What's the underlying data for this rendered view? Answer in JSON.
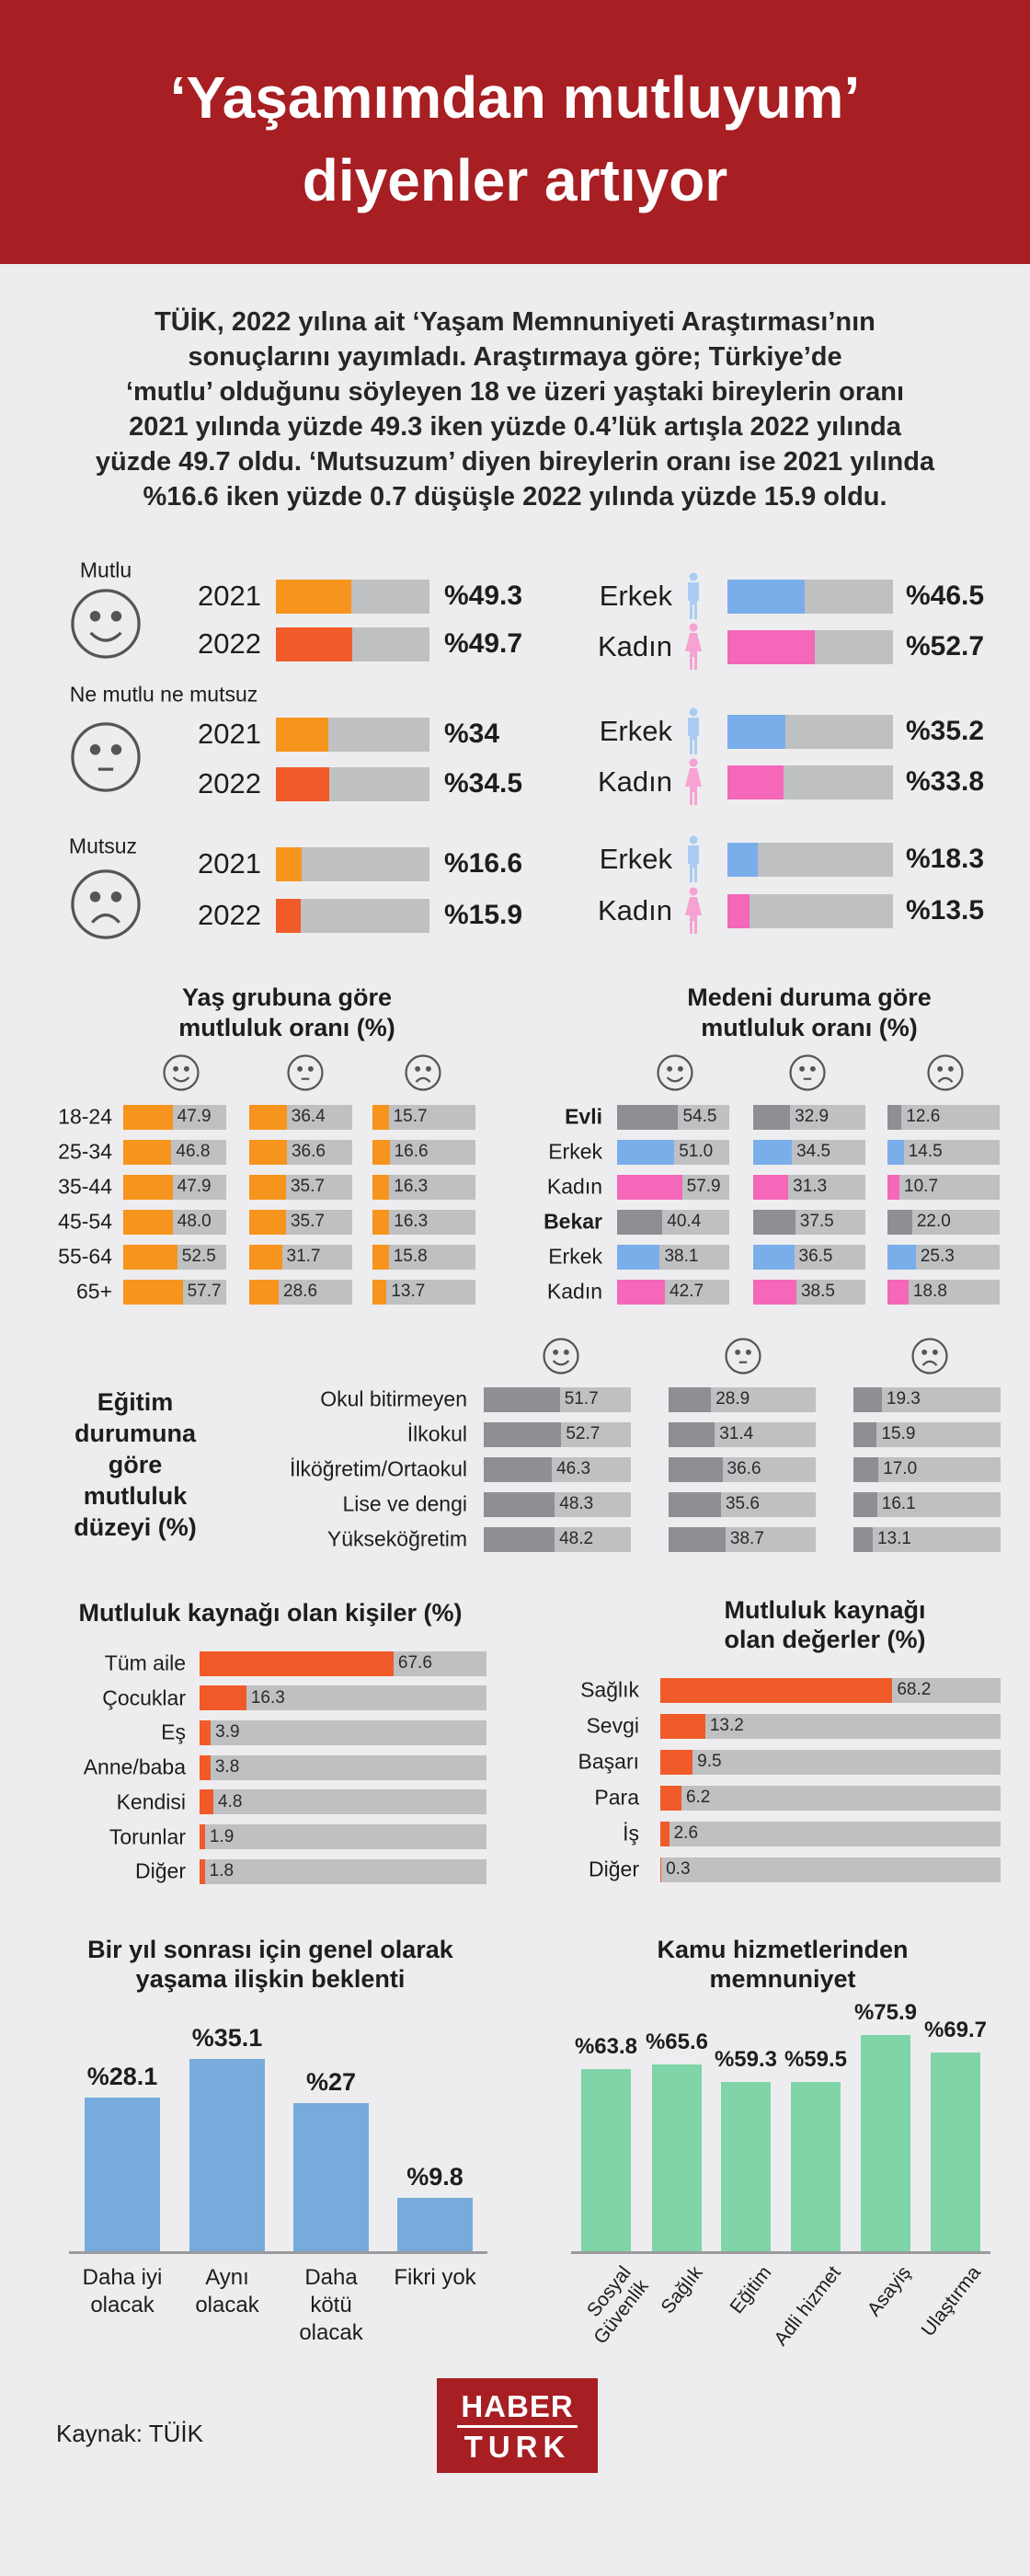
{
  "colors": {
    "header": "#a71e23",
    "orange": "#f7941d",
    "red_orange": "#f15a29",
    "blue": "#7aaeea",
    "pink": "#f467b9",
    "gray_fill": "#8e8f92",
    "track": "#bfc0c2",
    "bar_blue": "#77abdb",
    "bar_green": "#7fd4a8",
    "icon_blue": "#a9cdf2",
    "icon_pink": "#f6a2d2"
  },
  "header": {
    "title_lines": [
      "‘Yaşamımdan mutluyum’",
      "diyenler artıyor"
    ]
  },
  "intro": {
    "lines": [
      "TÜİK, 2022 yılına ait ‘Yaşam Memnuniyeti Araştırması’nın",
      "sonuçlarını yayımladı. Araştırmaya göre; Türkiye’de",
      "‘mutlu’ olduğunu söyleyen 18 ve üzeri yaştaki bireylerin oranı",
      "2021 yılında yüzde 49.3 iken yüzde 0.4’lük artışla 2022 yılında",
      "yüzde 49.7 oldu. ‘Mutsuzum’ diyen bireylerin oranı ise 2021 yılında",
      "%16.6 iken yüzde 0.7 düşüşle 2022 yılında yüzde 15.9 oldu."
    ]
  },
  "happiness": [
    {
      "label": "Mutlu",
      "face": "happy-face-icon",
      "years": [
        {
          "year": "2021",
          "value": "%49.3"
        },
        {
          "year": "2022",
          "value": "%49.7"
        }
      ],
      "gender": [
        {
          "label": "Erkek",
          "value": "%46.5"
        },
        {
          "label": "Kadın",
          "value": "%52.7"
        }
      ]
    },
    {
      "label": "Ne mutlu ne mutsuz",
      "face": "neutral-face-icon",
      "years": [
        {
          "year": "2021",
          "value": "%34"
        },
        {
          "year": "2022",
          "value": "%34.5"
        }
      ],
      "gender": [
        {
          "label": "Erkek",
          "value": "%35.2"
        },
        {
          "label": "Kadın",
          "value": "%33.8"
        }
      ]
    },
    {
      "label": "Mutsuz",
      "face": "sad-face-icon",
      "years": [
        {
          "year": "2021",
          "value": "%16.6"
        },
        {
          "year": "2022",
          "value": "%15.9"
        }
      ],
      "gender": [
        {
          "label": "Erkek",
          "value": "%18.3"
        },
        {
          "label": "Kadın",
          "value": "%13.5"
        }
      ]
    }
  ],
  "age": {
    "title_lines": [
      "Yaş grubuna göre",
      "mutluluk oranı (%)"
    ],
    "rows": [
      {
        "label": "18-24",
        "values": [
          "47.9",
          "36.4",
          "15.7"
        ]
      },
      {
        "label": "25-34",
        "values": [
          "46.8",
          "36.6",
          "16.6"
        ]
      },
      {
        "label": "35-44",
        "values": [
          "47.9",
          "35.7",
          "16.3"
        ]
      },
      {
        "label": "45-54",
        "values": [
          "48.0",
          "35.7",
          "16.3"
        ]
      },
      {
        "label": "55-64",
        "values": [
          "52.5",
          "31.7",
          "15.8"
        ]
      },
      {
        "label": "65+",
        "values": [
          "57.7",
          "28.6",
          "13.7"
        ]
      }
    ]
  },
  "marital": {
    "title_lines": [
      "Medeni duruma göre",
      "mutluluk oranı (%)"
    ],
    "rows": [
      {
        "label": "Evli",
        "kind": "total",
        "values": [
          "54.5",
          "32.9",
          "12.6"
        ]
      },
      {
        "label": "Erkek",
        "kind": "male",
        "values": [
          "51.0",
          "34.5",
          "14.5"
        ]
      },
      {
        "label": "Kadın",
        "kind": "female",
        "values": [
          "57.9",
          "31.3",
          "10.7"
        ]
      },
      {
        "label": "Bekar",
        "kind": "total",
        "values": [
          "40.4",
          "37.5",
          "22.0"
        ]
      },
      {
        "label": "Erkek",
        "kind": "male",
        "values": [
          "38.1",
          "36.5",
          "25.3"
        ]
      },
      {
        "label": "Kadın",
        "kind": "female",
        "values": [
          "42.7",
          "38.5",
          "18.8"
        ]
      }
    ]
  },
  "education": {
    "title_lines": [
      "Eğitim",
      "durumuna",
      "göre",
      "mutluluk",
      "düzeyi (%)"
    ],
    "rows": [
      {
        "label": "Okul bitirmeyen",
        "values": [
          "51.7",
          "28.9",
          "19.3"
        ]
      },
      {
        "label": "İlkokul",
        "values": [
          "52.7",
          "31.4",
          "15.9"
        ]
      },
      {
        "label": "İlköğretim/Ortaokul",
        "values": [
          "46.3",
          "36.6",
          "17.0"
        ]
      },
      {
        "label": "Lise ve dengi",
        "values": [
          "48.3",
          "35.6",
          "16.1"
        ]
      },
      {
        "label": "Yükseköğretim",
        "values": [
          "48.2",
          "38.7",
          "13.1"
        ]
      }
    ]
  },
  "people_sources": {
    "title_lines": [
      "Mutluluk kaynağı olan kişiler (%)"
    ],
    "rows": [
      {
        "label": "Tüm aile",
        "value": "67.6"
      },
      {
        "label": "Çocuklar",
        "value": "16.3"
      },
      {
        "label": "Eş",
        "value": "3.9"
      },
      {
        "label": "Anne/baba",
        "value": "3.8"
      },
      {
        "label": "Kendisi",
        "value": "4.8"
      },
      {
        "label": "Torunlar",
        "value": "1.9"
      },
      {
        "label": "Diğer",
        "value": "1.8"
      }
    ]
  },
  "value_sources": {
    "title_lines": [
      "Mutluluk kaynağı",
      "olan değerler (%)"
    ],
    "rows": [
      {
        "label": "Sağlık",
        "value": "68.2"
      },
      {
        "label": "Sevgi",
        "value": "13.2"
      },
      {
        "label": "Başarı",
        "value": "9.5"
      },
      {
        "label": "Para",
        "value": "6.2"
      },
      {
        "label": "İş",
        "value": "2.6"
      },
      {
        "label": "Diğer",
        "value": "0.3"
      }
    ]
  },
  "chart_data": [
    {
      "type": "bar",
      "title": "Bir yıl sonrası için genel olarak yaşama ilişkin beklenti",
      "title_lines": [
        "Bir yıl sonrası için genel olarak",
        "yaşama ilişkin beklenti"
      ],
      "categories": [
        [
          "Daha iyi",
          "olacak"
        ],
        [
          "Aynı",
          "olacak"
        ],
        [
          "Daha",
          "kötü",
          "olacak"
        ],
        [
          "Fikri yok"
        ]
      ],
      "values": [
        28.1,
        35.1,
        27,
        9.8
      ],
      "labels": [
        "%28.1",
        "%35.1",
        "%27",
        "%9.8"
      ],
      "ylim": [
        0,
        40
      ]
    },
    {
      "type": "bar",
      "title": "Kamu hizmetlerinden memnuniyet",
      "title_lines": [
        "Kamu hizmetlerinden",
        "memnuniyet"
      ],
      "categories": [
        [
          "Sosyal",
          "Güvenlik"
        ],
        [
          "Sağlık"
        ],
        [
          "Eğitim"
        ],
        [
          "Adli hizmet"
        ],
        [
          "Asayiş"
        ],
        [
          "Ulaştırma"
        ]
      ],
      "values": [
        63.8,
        65.6,
        59.3,
        59.5,
        75.9,
        69.7
      ],
      "labels": [
        "%63.8",
        "%65.6",
        "%59.3",
        "%59.5",
        "%75.9",
        "%69.7"
      ],
      "ylim": [
        0,
        80
      ]
    }
  ],
  "footer": {
    "source": "Kaynak: TÜİK",
    "logo_lines": [
      "HABER",
      "TURK"
    ]
  }
}
